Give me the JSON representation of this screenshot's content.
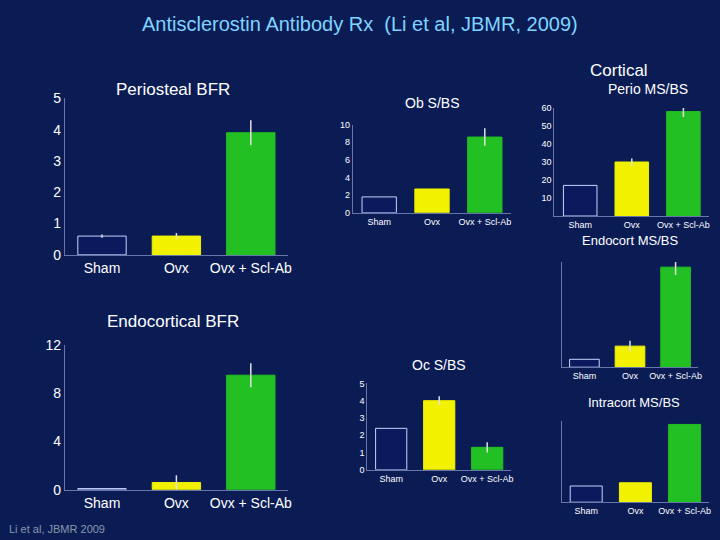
{
  "title": "Antisclerostin Antibody Rx  (Li et al, JBMR, 2009)",
  "notes": [
    "Cortical",
    "Li et al, JBMR 2009"
  ],
  "chart_data": [
    {
      "type": "bar",
      "title": "Periosteal BFR",
      "categories": [
        "Sham",
        "Ovx",
        "Ovx + Scl-Ab"
      ],
      "values": [
        0.6,
        0.6,
        3.9
      ],
      "errors": [
        0.05,
        0.1,
        0.4
      ],
      "colors": [
        "#0a1a5c",
        "#f2f200",
        "#22c022"
      ],
      "ylim": [
        0,
        5
      ],
      "yticks": [
        0,
        1,
        2,
        3,
        4,
        5
      ]
    },
    {
      "type": "bar",
      "title": "Ob S/BS",
      "categories": [
        "Sham",
        "Ovx",
        "Ovx + Scl-Ab"
      ],
      "values": [
        1.8,
        2.7,
        8.6
      ],
      "errors": [
        0,
        0,
        1.0
      ],
      "colors": [
        "#0a1a5c",
        "#f2f200",
        "#22c022"
      ],
      "ylim": [
        0,
        10
      ],
      "yticks": [
        0,
        2,
        4,
        6,
        8,
        10
      ]
    },
    {
      "type": "bar",
      "title": "Perio MS/BS",
      "categories": [
        "Sham",
        "Ovx",
        "Ovx + Scl-Ab"
      ],
      "values": [
        17,
        30,
        58
      ],
      "errors": [
        0,
        2,
        3
      ],
      "colors": [
        "#0a1a5c",
        "#f2f200",
        "#22c022"
      ],
      "ylim": [
        0,
        60
      ],
      "yticks": [
        10,
        20,
        30,
        40,
        50,
        60
      ]
    },
    {
      "type": "bar",
      "title": "Endocortical BFR",
      "categories": [
        "Sham",
        "Ovx",
        "Ovx + Scl-Ab"
      ],
      "values": [
        0.1,
        0.6,
        9.5
      ],
      "errors": [
        0,
        0.6,
        1.0
      ],
      "colors": [
        "#0a1a5c",
        "#f2f200",
        "#22c022"
      ],
      "ylim": [
        0,
        12
      ],
      "yticks": [
        0,
        4,
        8,
        12
      ]
    },
    {
      "type": "bar",
      "title": "Oc S/BS",
      "categories": [
        "Sham",
        "Ovx",
        "Ovx + Scl-Ab"
      ],
      "values": [
        2.4,
        4.0,
        1.3
      ],
      "errors": [
        0,
        0.25,
        0.3
      ],
      "colors": [
        "#0a1a5c",
        "#f2f200",
        "#22c022"
      ],
      "ylim": [
        0,
        5
      ],
      "yticks": [
        0,
        1,
        2,
        3,
        4,
        5
      ]
    },
    {
      "type": "bar",
      "title": "Endocort MS/BS",
      "categories": [
        "Sham",
        "Ovx",
        "Ovx + Scl-Ab"
      ],
      "values": [
        3,
        8,
        38
      ],
      "errors": [
        0,
        2,
        3
      ],
      "colors": [
        "#0a1a5c",
        "#f2f200",
        "#22c022"
      ],
      "ylim": [
        0,
        40
      ],
      "tick_labels": "x"
    },
    {
      "type": "bar",
      "title": "Intracort MS/BS",
      "categories": [
        "Sham",
        "Ovx",
        "Ovx + Scl-Ab"
      ],
      "values": [
        5,
        6,
        24
      ],
      "errors": [
        0,
        0,
        0
      ],
      "colors": [
        "#0a1a5c",
        "#f2f200",
        "#22c022"
      ],
      "ylim": [
        0,
        25
      ],
      "tick_labels": "x"
    }
  ]
}
